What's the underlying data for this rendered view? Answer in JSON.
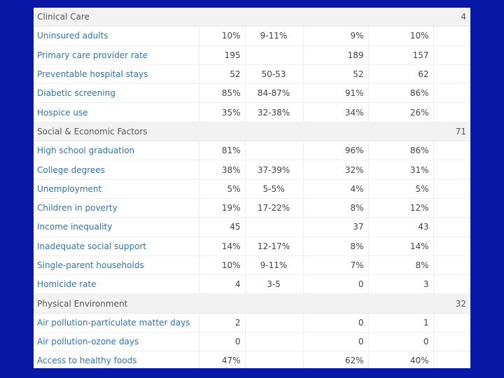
{
  "sections": [
    {
      "title": "Clinical Care",
      "rank": "4",
      "rows": [
        {
          "label": "Uninsured adults",
          "county": "10%",
          "error": "9-11%",
          "benchmark": "9%",
          "state": "10%"
        },
        {
          "label": "Primary care provider rate",
          "county": "195",
          "error": "",
          "benchmark": "189",
          "state": "157"
        },
        {
          "label": "Preventable hospital stays",
          "county": "52",
          "error": "50-53",
          "benchmark": "52",
          "state": "62"
        },
        {
          "label": "Diabetic screening",
          "county": "85%",
          "error": "84-87%",
          "benchmark": "91%",
          "state": "86%"
        },
        {
          "label": "Hospice use",
          "county": "35%",
          "error": "32-38%",
          "benchmark": "34%",
          "state": "26%"
        }
      ]
    },
    {
      "title": "Social & Economic Factors",
      "rank": "71",
      "rows": [
        {
          "label": "High school graduation",
          "county": "81%",
          "error": "",
          "benchmark": "96%",
          "state": "86%"
        },
        {
          "label": "College degrees",
          "county": "38%",
          "error": "37-39%",
          "benchmark": "32%",
          "state": "31%"
        },
        {
          "label": "Unemployment",
          "county": "5%",
          "error": "5-5%",
          "benchmark": "4%",
          "state": "5%"
        },
        {
          "label": "Children in poverty",
          "county": "19%",
          "error": "17-22%",
          "benchmark": "8%",
          "state": "12%"
        },
        {
          "label": "Income inequality",
          "county": "45",
          "error": "",
          "benchmark": "37",
          "state": "43"
        },
        {
          "label": "Inadequate social support",
          "county": "14%",
          "error": "12-17%",
          "benchmark": "8%",
          "state": "14%"
        },
        {
          "label": "Single-parent households",
          "county": "10%",
          "error": "9-11%",
          "benchmark": "7%",
          "state": "8%"
        },
        {
          "label": "Homicide rate",
          "county": "4",
          "error": "3-5",
          "benchmark": "0",
          "state": "3"
        }
      ]
    },
    {
      "title": "Physical Environment",
      "rank": "32",
      "rows": [
        {
          "label": "Air pollution-particulate matter days",
          "county": "2",
          "error": "",
          "benchmark": "0",
          "state": "1"
        },
        {
          "label": "Air pollution-ozone days",
          "county": "0",
          "error": "",
          "benchmark": "0",
          "state": "0"
        },
        {
          "label": "Access to healthy foods",
          "county": "47%",
          "error": "",
          "benchmark": "62%",
          "state": "40%"
        }
      ]
    }
  ]
}
